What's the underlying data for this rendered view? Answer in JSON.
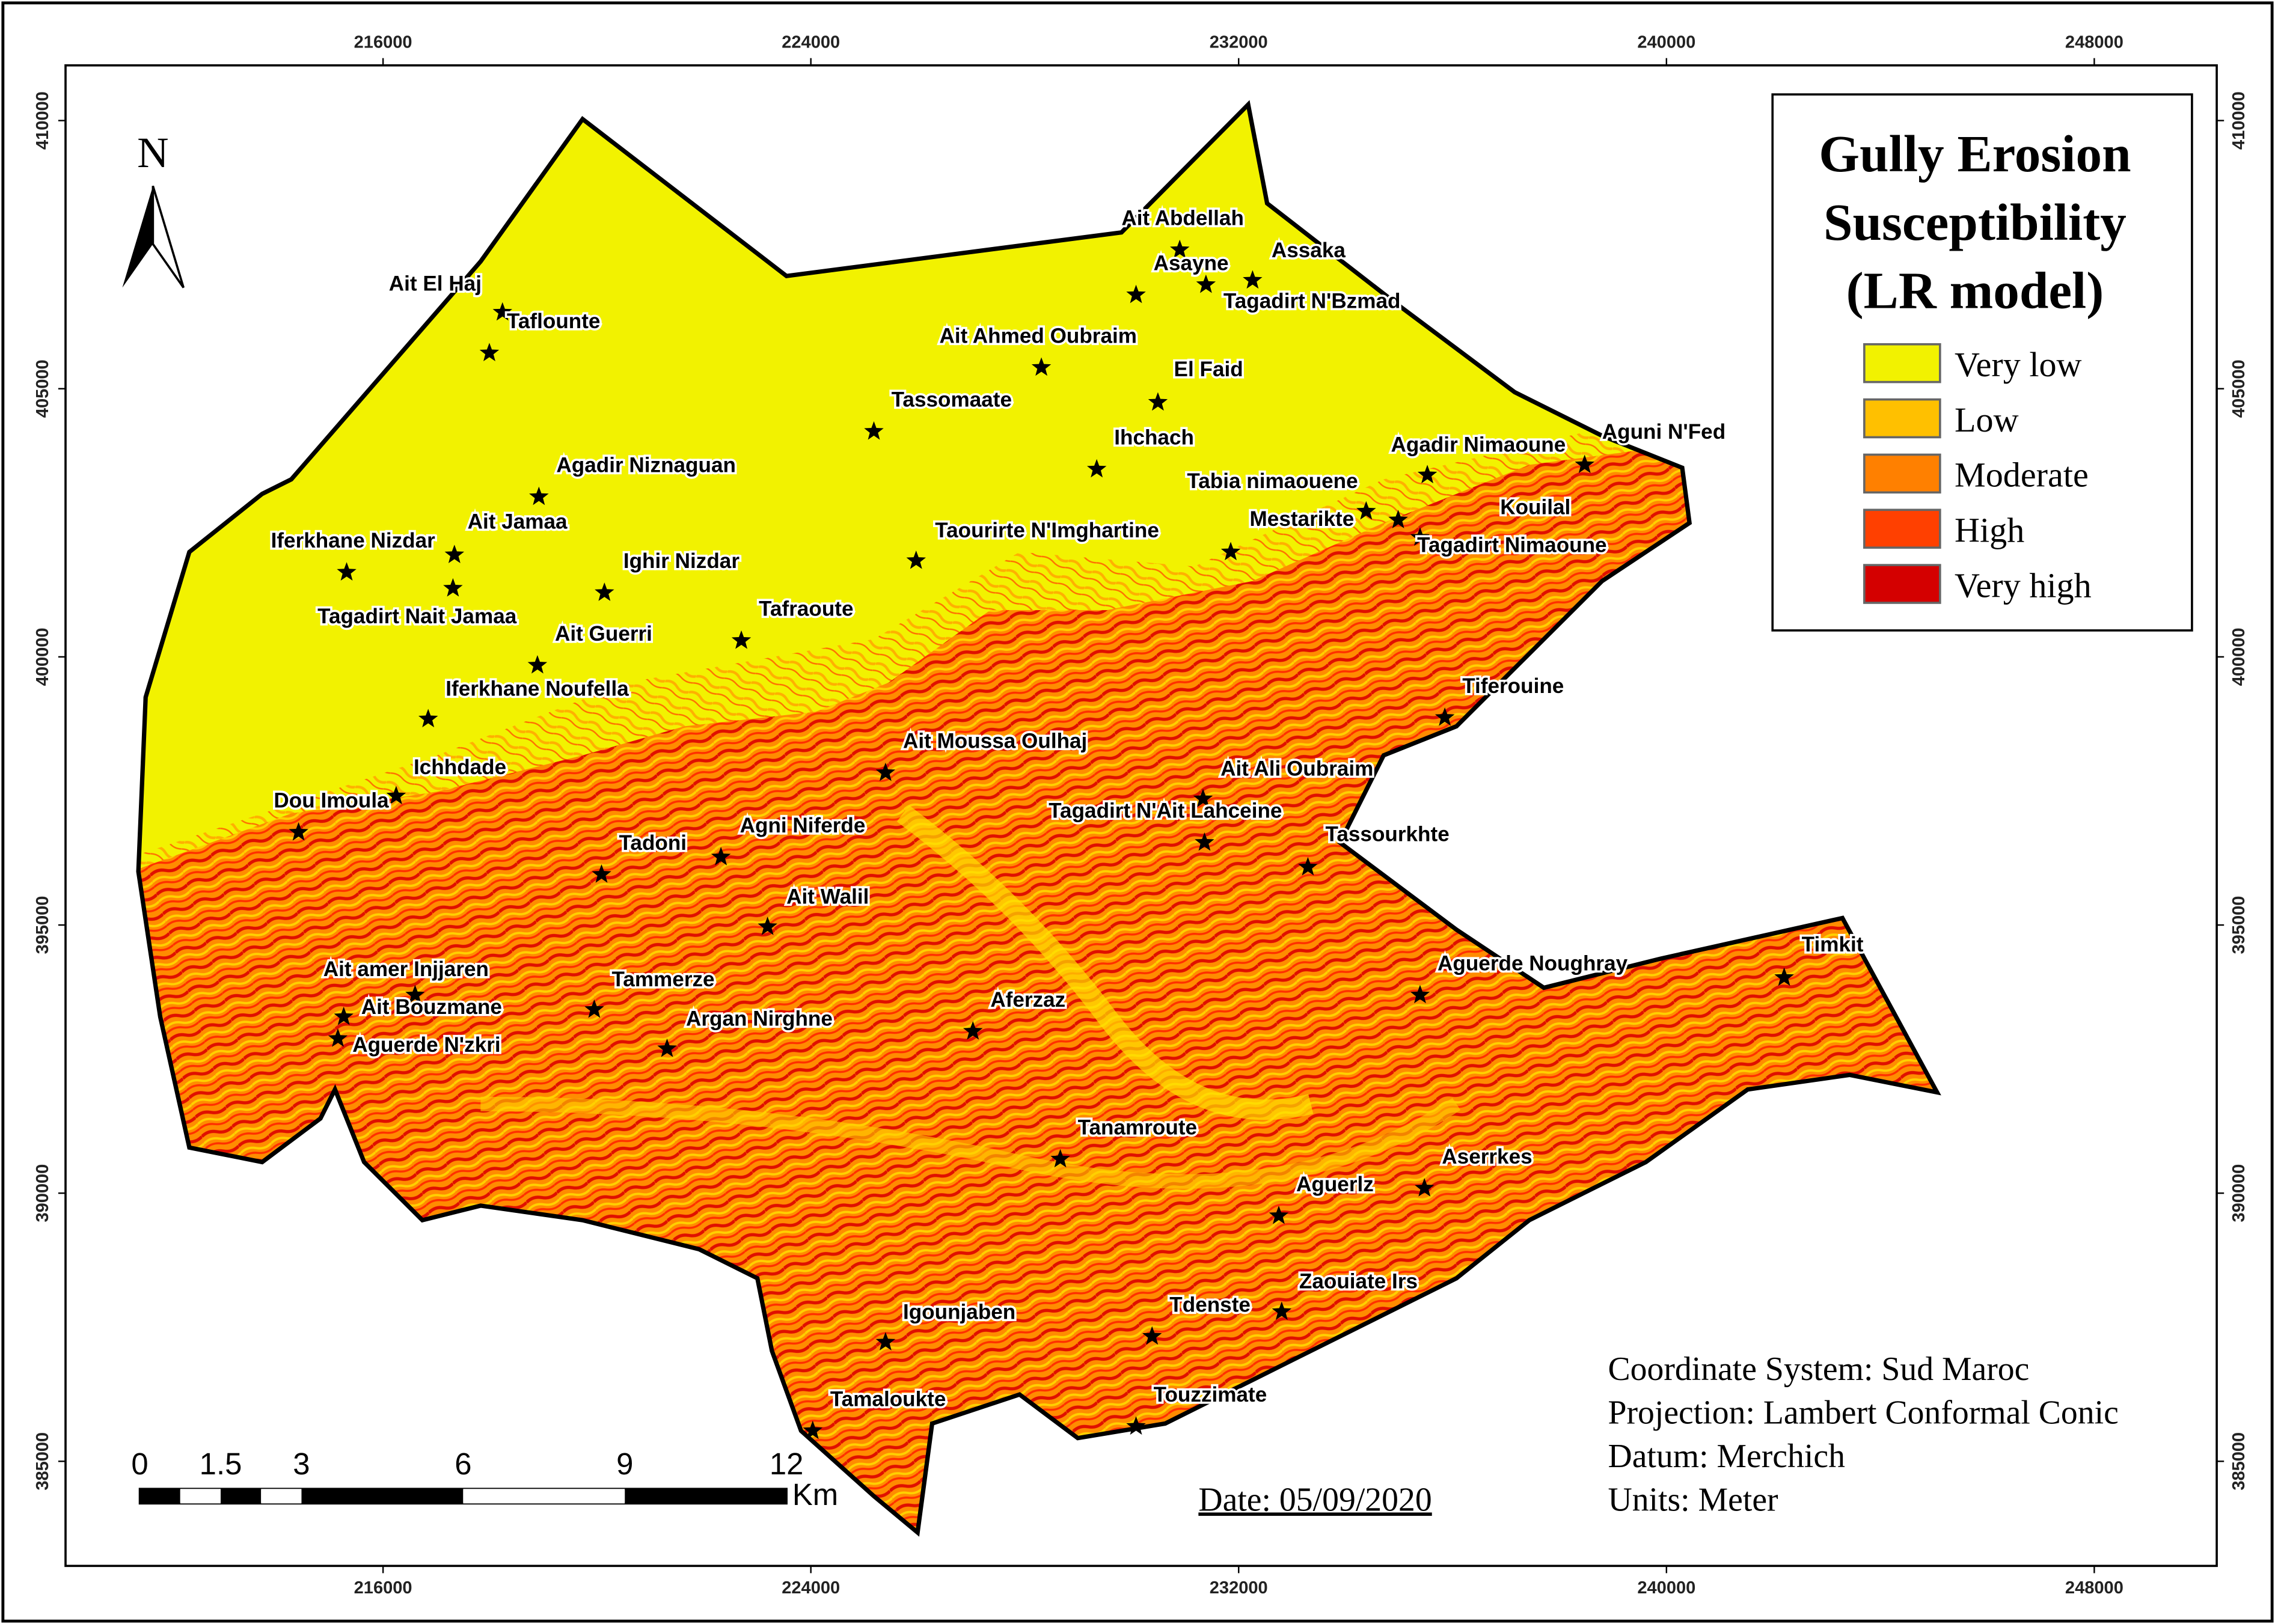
{
  "map": {
    "title_lines": [
      "Gully Erosion",
      "Susceptibility",
      "(LR model)"
    ],
    "legend": [
      {
        "label": "Very low",
        "color": "#f2f200"
      },
      {
        "label": "Low",
        "color": "#ffc000"
      },
      {
        "label": "Moderate",
        "color": "#ff8000"
      },
      {
        "label": "High",
        "color": "#ff4000"
      },
      {
        "label": "Very high",
        "color": "#d40000"
      }
    ],
    "north": "N",
    "xticks": [
      216000,
      224000,
      232000,
      240000,
      248000
    ],
    "yticks": [
      410000,
      405000,
      400000,
      395000,
      390000,
      385000
    ],
    "scale_bar": {
      "ticks": [
        0,
        1.5,
        3,
        6,
        9,
        12
      ],
      "unit": "Km"
    },
    "date": "Date: 05/09/2020",
    "info": [
      "Coordinate System: Sud Maroc",
      "Projection: Lambert Conformal Conic",
      "Datum: Merchich",
      "Units: Meter"
    ],
    "places": [
      "Ait Abdellah",
      "Assaka",
      "Asayne",
      "Tagadirt N'Bzmad",
      "Ait El Haj",
      "Taflounte",
      "Ait Ahmed Oubraim",
      "El Faid",
      "Tassomaate",
      "Ihchach",
      "Agadir Nimaoune",
      "Aguni N'Fed",
      "Agadir Niznaguan",
      "Tabia nimaouene",
      "Kouilal",
      "Mestarikte",
      "Tagadirt Nimaoune",
      "Ait Jamaa",
      "Iferkhane Nizdar",
      "Taourirte N'Imghartine",
      "Ighir Nizdar",
      "Tagadirt Nait Jamaa",
      "Tafraoute",
      "Ait Guerri",
      "Iferkhane Noufella",
      "Tiferouine",
      "Ait Moussa Oulhaj",
      "Ichhdade",
      "Ait Ali Oubraim",
      "Dou Imoula",
      "Tagadirt N'Ait Lahceine",
      "Tassourkhte",
      "Agni Niferde",
      "Tadoni",
      "Ait Walil",
      "Timkit",
      "Aguerde Noughray",
      "Ait amer  Injjaren",
      "Ait Bouzmane",
      "Aguerde N'zkri",
      "Tammerze",
      "Aferzaz",
      "Argan Nirghne",
      "Tanamroute",
      "Aserrkes",
      "Aguerlz",
      "Zaouiate Irs",
      "Tdenste",
      "Igounjaben",
      "Tamaloukte",
      "Touzzimate"
    ]
  }
}
